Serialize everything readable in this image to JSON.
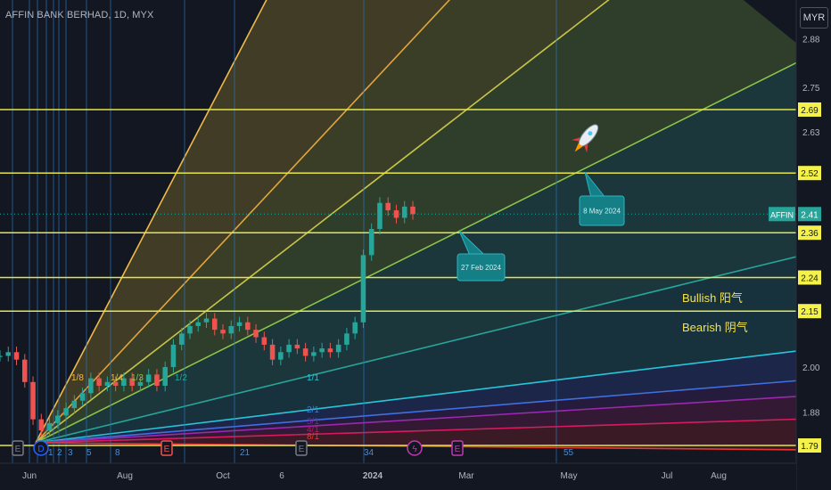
{
  "header": {
    "title": "AFFIN BANK BERHAD, 1D, MYX",
    "currency": "MYR"
  },
  "chart_data": {
    "type": "candlestick",
    "title": "AFFIN BANK BERHAD, 1D, MYX",
    "ylim": [
      1.76,
      2.93
    ],
    "y_ticks": [
      "1.88",
      "2.00",
      "2.15",
      "2.63",
      "2.75",
      "2.88"
    ],
    "x_ticks": [
      "Jun",
      "Aug",
      "Oct",
      "6",
      "2024",
      "Mar",
      "May",
      "Jul",
      "Aug"
    ],
    "horizontal_levels": [
      "1.79",
      "2.15",
      "2.24",
      "2.36",
      "2.52",
      "2.69"
    ],
    "last_price": {
      "symbol": "AFFIN",
      "value": "2.41"
    },
    "gann_fan": {
      "origin": {
        "date": "Jun",
        "price": 1.79
      },
      "ratio_labels": [
        "1/8",
        "1/4",
        "1/3",
        "1/2",
        "1/1",
        "2/1",
        "3/1",
        "4/1",
        "8/1"
      ],
      "colors": [
        "#f0b94a",
        "#f0b94a",
        "#8bc34a",
        "#26a69a",
        "#26c6da",
        "#3a7fd6",
        "#7b1fa2",
        "#c2185b",
        "#e53935"
      ]
    },
    "annotations": [
      {
        "text": "27 Feb 2024",
        "type": "callout"
      },
      {
        "text": "8 May 2024",
        "type": "callout"
      },
      {
        "text": "Bullish 阳气",
        "type": "text"
      },
      {
        "text": "Bearish 阴气",
        "type": "text"
      },
      {
        "text": "rocket-icon",
        "type": "icon"
      }
    ],
    "event_markers": [
      {
        "glyph": "E",
        "label": ""
      },
      {
        "glyph": "D",
        "label": ""
      },
      {
        "glyph": "E",
        "label": ""
      },
      {
        "glyph": "E",
        "label": ""
      },
      {
        "glyph": "ϟ",
        "label": ""
      },
      {
        "glyph": "E",
        "label": ""
      }
    ],
    "cycle_labels": [
      "1",
      "2",
      "3",
      "5",
      "8",
      "21",
      "34",
      "55"
    ],
    "price_series_approx": [
      2.03,
      2.04,
      2.02,
      1.96,
      1.86,
      1.83,
      1.85,
      1.87,
      1.89,
      1.91,
      1.93,
      1.97,
      1.95,
      1.96,
      1.95,
      1.97,
      1.95,
      1.96,
      1.98,
      1.95,
      2.0,
      2.06,
      2.09,
      2.11,
      2.12,
      2.13,
      2.1,
      2.09,
      2.11,
      2.12,
      2.1,
      2.08,
      2.06,
      2.02,
      2.04,
      2.06,
      2.05,
      2.03,
      2.04,
      2.05,
      2.04,
      2.06,
      2.09,
      2.12,
      2.3,
      2.37,
      2.44,
      2.42,
      2.4,
      2.43,
      2.41
    ]
  }
}
